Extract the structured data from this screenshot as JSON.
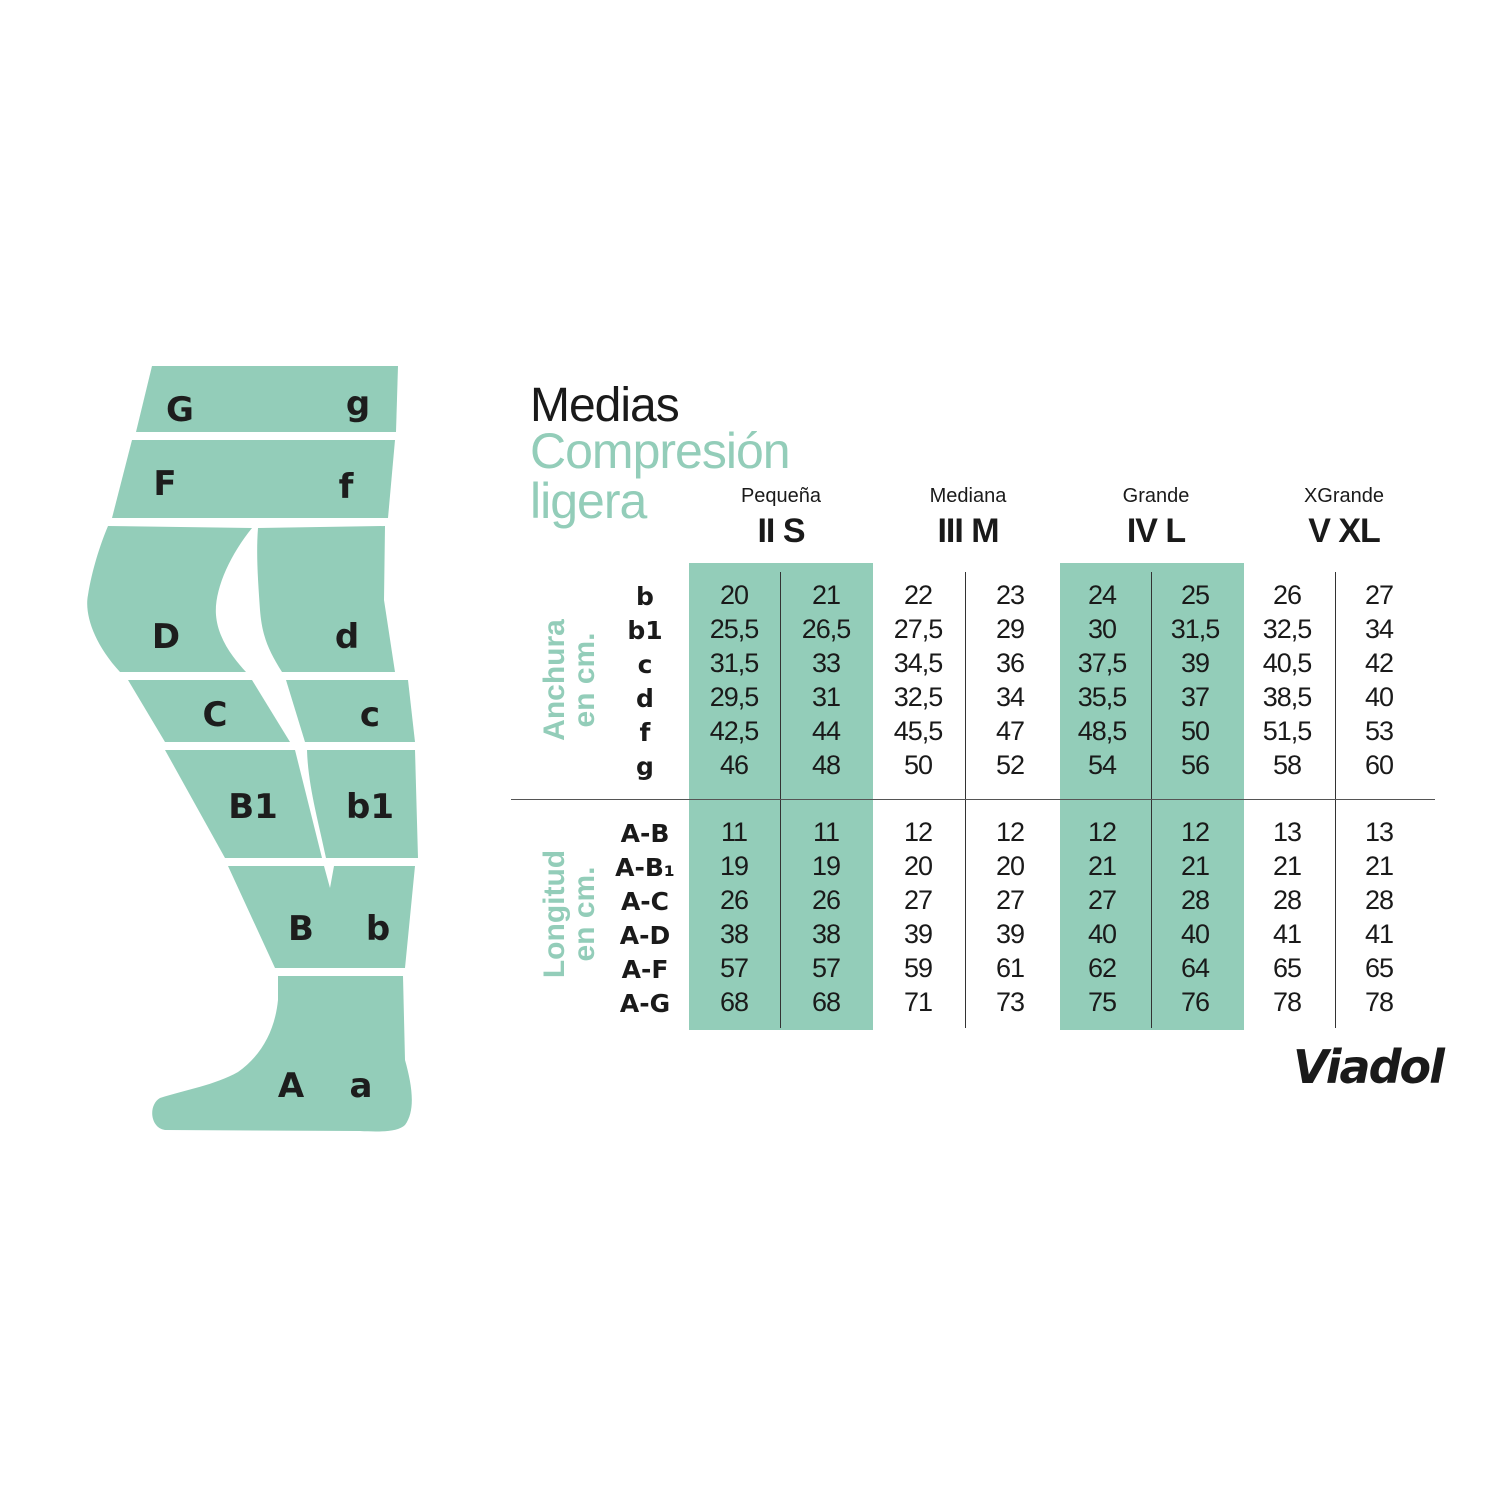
{
  "colors": {
    "accent": "#93cdb9",
    "text": "#1a1a1a"
  },
  "title": {
    "line1": "Medias",
    "line2": "Compresión",
    "line3": "ligera"
  },
  "leg_labels": {
    "G": "G",
    "g": "g",
    "F": "F",
    "f": "f",
    "D": "D",
    "d": "d",
    "C": "C",
    "c": "c",
    "B1": "B1",
    "b1": "b1",
    "B": "B",
    "b": "b",
    "A": "A",
    "a": "a"
  },
  "sizes": [
    {
      "name": "Pequeña",
      "code": "II S"
    },
    {
      "name": "Mediana",
      "code": "III M"
    },
    {
      "name": "Grande",
      "code": "IV L"
    },
    {
      "name": "XGrande",
      "code": "V XL"
    }
  ],
  "width_section": {
    "label_line1": "Anchura",
    "label_line2": "en cm.",
    "rows": [
      {
        "label": "b",
        "values": [
          "20",
          "21",
          "22",
          "23",
          "24",
          "25",
          "26",
          "27"
        ]
      },
      {
        "label": "b1",
        "values": [
          "25,5",
          "26,5",
          "27,5",
          "29",
          "30",
          "31,5",
          "32,5",
          "34"
        ]
      },
      {
        "label": "c",
        "values": [
          "31,5",
          "33",
          "34,5",
          "36",
          "37,5",
          "39",
          "40,5",
          "42"
        ]
      },
      {
        "label": "d",
        "values": [
          "29,5",
          "31",
          "32,5",
          "34",
          "35,5",
          "37",
          "38,5",
          "40"
        ]
      },
      {
        "label": "f",
        "values": [
          "42,5",
          "44",
          "45,5",
          "47",
          "48,5",
          "50",
          "51,5",
          "53"
        ]
      },
      {
        "label": "g",
        "values": [
          "46",
          "48",
          "50",
          "52",
          "54",
          "56",
          "58",
          "60"
        ]
      }
    ]
  },
  "length_section": {
    "label_line1": "Longitud",
    "label_line2": "en cm.",
    "rows": [
      {
        "label": "A-B",
        "values": [
          "11",
          "11",
          "12",
          "12",
          "12",
          "12",
          "13",
          "13"
        ]
      },
      {
        "label": "A-B₁",
        "values": [
          "19",
          "19",
          "20",
          "20",
          "21",
          "21",
          "21",
          "21"
        ]
      },
      {
        "label": "A-C",
        "values": [
          "26",
          "26",
          "27",
          "27",
          "27",
          "28",
          "28",
          "28"
        ]
      },
      {
        "label": "A-D",
        "values": [
          "38",
          "38",
          "39",
          "39",
          "40",
          "40",
          "41",
          "41"
        ]
      },
      {
        "label": "A-F",
        "values": [
          "57",
          "57",
          "59",
          "61",
          "62",
          "64",
          "65",
          "65"
        ]
      },
      {
        "label": "A-G",
        "values": [
          "68",
          "68",
          "71",
          "73",
          "75",
          "76",
          "78",
          "78"
        ]
      }
    ]
  },
  "brand": "Viadol"
}
